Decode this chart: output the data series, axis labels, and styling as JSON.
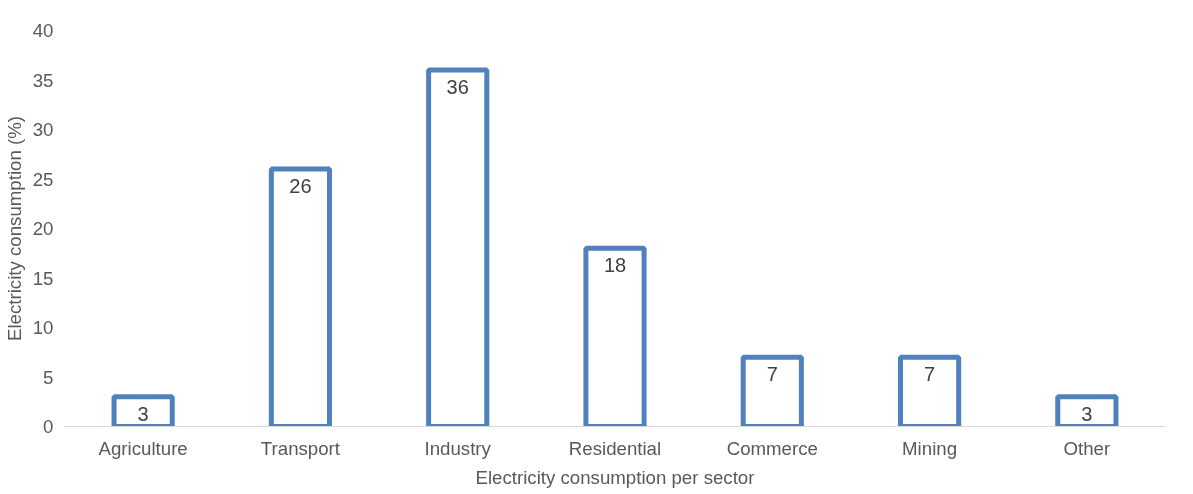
{
  "chart_data": {
    "type": "bar",
    "xlabel": "Electricity consumption per sector",
    "ylabel": "Electricity consumption (%)",
    "categories": [
      "Agriculture",
      "Transport",
      "Industry",
      "Residential",
      "Commerce",
      "Mining",
      "Other"
    ],
    "values": [
      3,
      26,
      36,
      18,
      7,
      7,
      3
    ],
    "color": "#4f81bd",
    "ylim": [
      0,
      40
    ],
    "yticks": [
      0,
      5,
      10,
      15,
      20,
      25,
      30,
      35,
      40
    ],
    "data_labels": true,
    "grid": false
  }
}
